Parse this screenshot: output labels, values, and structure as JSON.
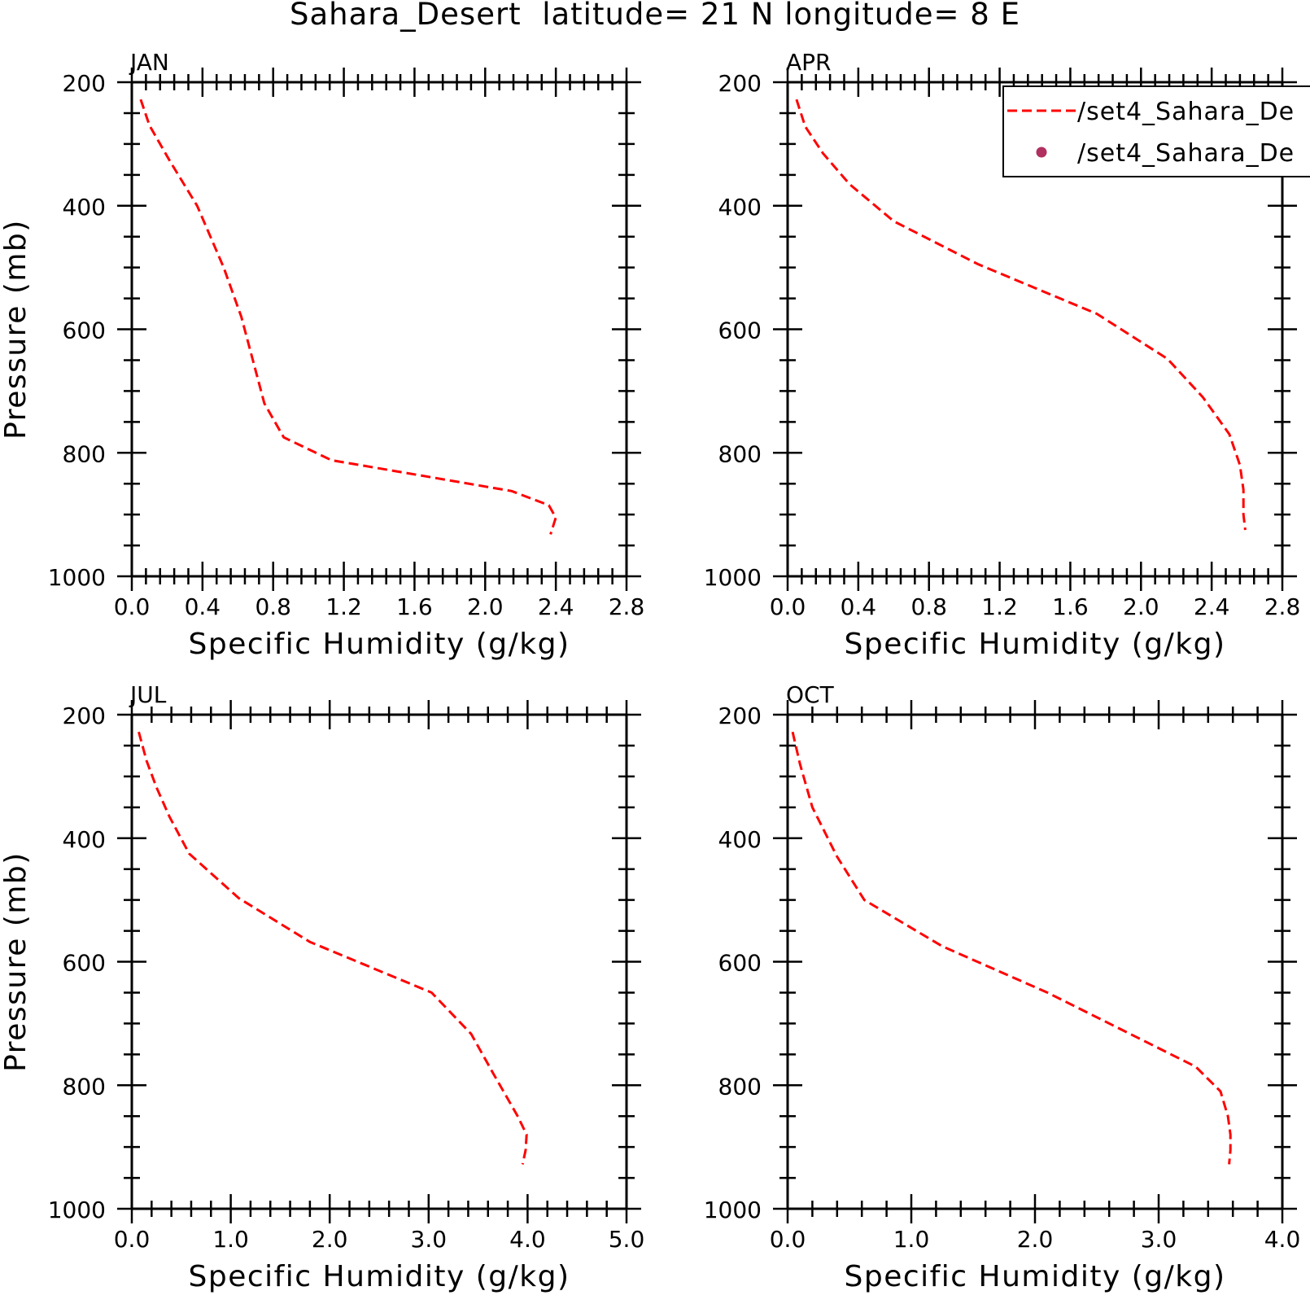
{
  "title": "Sahara_Desert  latitude= 21 N longitude= 8 E",
  "legend": {
    "entries": [
      {
        "label": "/set4_Sahara_De",
        "style": "dashed-line",
        "color": "#ff0000"
      },
      {
        "label": "/set4_Sahara_De",
        "style": "dot",
        "color": "#b03060"
      }
    ],
    "placement": "top-right of APR panel, clipped by figure edge"
  },
  "colors": {
    "model_line": "#ff0000",
    "obs_marker": "#b03060",
    "axes": "#000000"
  },
  "chart_data": [
    {
      "type": "line",
      "panel": "JAN",
      "title": "JAN",
      "xlabel": "Specific Humidity (g/kg)",
      "ylabel": "Pressure (mb)",
      "xlim": [
        0.0,
        2.8
      ],
      "ylim": [
        1000,
        200
      ],
      "y_inverted": true,
      "xticks": [
        0.0,
        0.4,
        0.8,
        1.2,
        1.6,
        2.0,
        2.4,
        2.8
      ],
      "xtick_labels": [
        "0.0",
        "0.4",
        "0.8",
        "1.2",
        "1.6",
        "2.0",
        "2.4",
        "2.8"
      ],
      "yticks": [
        200,
        400,
        600,
        800,
        1000
      ],
      "ytick_labels": [
        "200",
        "400",
        "600",
        "800",
        "1000"
      ],
      "grid": false,
      "series": [
        {
          "name": "/set4_Sahara_De",
          "x": [
            0.05,
            0.1,
            0.22,
            0.37,
            0.52,
            0.62,
            0.75,
            0.86,
            1.13,
            1.6,
            2.15,
            2.36,
            2.4,
            2.37
          ],
          "y": [
            228,
            270,
            330,
            400,
            500,
            580,
            720,
            775,
            812,
            835,
            862,
            885,
            905,
            932
          ]
        }
      ]
    },
    {
      "type": "line",
      "panel": "APR",
      "title": "APR",
      "xlabel": "Specific Humidity (g/kg)",
      "ylabel": "",
      "xlim": [
        0.0,
        2.8
      ],
      "ylim": [
        1000,
        200
      ],
      "y_inverted": true,
      "xticks": [
        0.0,
        0.4,
        0.8,
        1.2,
        1.6,
        2.0,
        2.4,
        2.8
      ],
      "xtick_labels": [
        "0.0",
        "0.4",
        "0.8",
        "1.2",
        "1.6",
        "2.0",
        "2.4",
        "2.8"
      ],
      "yticks": [
        200,
        400,
        600,
        800,
        1000
      ],
      "ytick_labels": [
        "200",
        "400",
        "600",
        "800",
        "1000"
      ],
      "grid": false,
      "series": [
        {
          "name": "/set4_Sahara_De",
          "x": [
            0.05,
            0.1,
            0.2,
            0.35,
            0.6,
            1.08,
            1.75,
            2.15,
            2.35,
            2.5,
            2.56,
            2.58,
            2.58,
            2.59
          ],
          "y": [
            228,
            272,
            315,
            365,
            425,
            495,
            575,
            648,
            710,
            770,
            820,
            860,
            900,
            925
          ]
        }
      ]
    },
    {
      "type": "line",
      "panel": "JUL",
      "title": "JUL",
      "xlabel": "Specific Humidity (g/kg)",
      "ylabel": "Pressure (mb)",
      "xlim": [
        0.0,
        5.0
      ],
      "ylim": [
        1000,
        200
      ],
      "y_inverted": true,
      "xticks": [
        0.0,
        1.0,
        2.0,
        3.0,
        4.0,
        5.0
      ],
      "xtick_labels": [
        "0.0",
        "1.0",
        "2.0",
        "3.0",
        "4.0",
        "5.0"
      ],
      "yticks": [
        200,
        400,
        600,
        800,
        1000
      ],
      "ytick_labels": [
        "200",
        "400",
        "600",
        "800",
        "1000"
      ],
      "grid": false,
      "series": [
        {
          "name": "/set4_Sahara_De",
          "x": [
            0.07,
            0.15,
            0.25,
            0.38,
            0.58,
            1.08,
            1.8,
            3.03,
            3.43,
            3.65,
            3.9,
            3.99,
            3.98,
            3.95
          ],
          "y": [
            228,
            275,
            318,
            365,
            425,
            497,
            568,
            650,
            717,
            780,
            850,
            880,
            905,
            928
          ]
        }
      ]
    },
    {
      "type": "line",
      "panel": "OCT",
      "title": "OCT",
      "xlabel": "Specific Humidity (g/kg)",
      "ylabel": "",
      "xlim": [
        0.0,
        4.0
      ],
      "ylim": [
        1000,
        200
      ],
      "y_inverted": true,
      "xticks": [
        0.0,
        1.0,
        2.0,
        3.0,
        4.0
      ],
      "xtick_labels": [
        "0.0",
        "1.0",
        "2.0",
        "3.0",
        "4.0"
      ],
      "yticks": [
        200,
        400,
        600,
        800,
        1000
      ],
      "ytick_labels": [
        "200",
        "400",
        "600",
        "800",
        "1000"
      ],
      "grid": false,
      "series": [
        {
          "name": "/set4_Sahara_De",
          "x": [
            0.04,
            0.1,
            0.2,
            0.4,
            0.62,
            1.25,
            2.1,
            3.3,
            3.5,
            3.56,
            3.58,
            3.58,
            3.57
          ],
          "y": [
            228,
            280,
            350,
            430,
            500,
            575,
            650,
            770,
            810,
            850,
            880,
            905,
            928
          ]
        }
      ]
    }
  ]
}
